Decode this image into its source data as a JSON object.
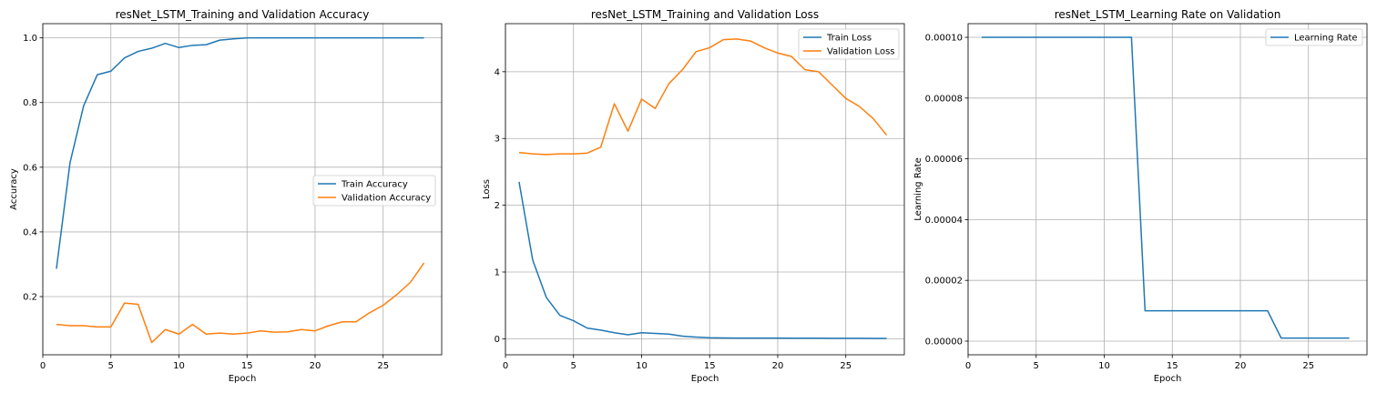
{
  "chart_data": [
    {
      "type": "line",
      "title": "resNet_LSTM_Training and Validation Accuracy",
      "xlabel": "Epoch",
      "ylabel": "Accuracy",
      "xlim": [
        0,
        29.3
      ],
      "ylim": [
        0.02,
        1.044
      ],
      "xticks": [
        0,
        5,
        10,
        15,
        20,
        25
      ],
      "yticks": [
        0.2,
        0.4,
        0.6,
        0.8,
        1.0
      ],
      "ytick_decimals": 1,
      "grid": true,
      "legend": "center-right",
      "x": [
        1,
        2,
        3,
        4,
        5,
        6,
        7,
        8,
        9,
        10,
        11,
        12,
        13,
        14,
        15,
        16,
        17,
        18,
        19,
        20,
        21,
        22,
        23,
        24,
        25,
        26,
        27,
        28
      ],
      "series": [
        {
          "name": "Train Accuracy",
          "color": "#1f77b4",
          "values": [
            0.286,
            0.614,
            0.79,
            0.886,
            0.897,
            0.938,
            0.958,
            0.968,
            0.983,
            0.97,
            0.977,
            0.979,
            0.993,
            0.997,
            1.0,
            1.0,
            1.0,
            1.0,
            1.0,
            1.0,
            1.0,
            1.0,
            1.0,
            1.0,
            1.0,
            1.0,
            1.0,
            1.0
          ]
        },
        {
          "name": "Validation Accuracy",
          "color": "#ff7f0e",
          "values": [
            0.114,
            0.11,
            0.11,
            0.106,
            0.106,
            0.18,
            0.176,
            0.058,
            0.098,
            0.084,
            0.114,
            0.084,
            0.087,
            0.084,
            0.087,
            0.094,
            0.09,
            0.091,
            0.098,
            0.094,
            0.11,
            0.122,
            0.122,
            0.15,
            0.173,
            0.206,
            0.244,
            0.304
          ]
        }
      ]
    },
    {
      "type": "line",
      "title": "resNet_LSTM_Training and Validation Loss",
      "xlabel": "Epoch",
      "ylabel": "Loss",
      "xlim": [
        0,
        29.3
      ],
      "ylim": [
        -0.24,
        4.72
      ],
      "xticks": [
        0,
        5,
        10,
        15,
        20,
        25
      ],
      "yticks": [
        0,
        1,
        2,
        3,
        4
      ],
      "ytick_decimals": 0,
      "grid": true,
      "legend": "top-right",
      "x": [
        1,
        2,
        3,
        4,
        5,
        6,
        7,
        8,
        9,
        10,
        11,
        12,
        13,
        14,
        15,
        16,
        17,
        18,
        19,
        20,
        21,
        22,
        23,
        24,
        25,
        26,
        27,
        28
      ],
      "series": [
        {
          "name": "Train Loss",
          "color": "#1f77b4",
          "values": [
            2.35,
            1.18,
            0.62,
            0.35,
            0.27,
            0.16,
            0.13,
            0.09,
            0.06,
            0.09,
            0.08,
            0.07,
            0.04,
            0.025,
            0.015,
            0.012,
            0.01,
            0.01,
            0.01,
            0.01,
            0.008,
            0.008,
            0.008,
            0.007,
            0.007,
            0.007,
            0.006,
            0.006
          ]
        },
        {
          "name": "Validation Loss",
          "color": "#ff7f0e",
          "values": [
            2.79,
            2.77,
            2.76,
            2.77,
            2.77,
            2.78,
            2.87,
            3.52,
            3.11,
            3.59,
            3.45,
            3.82,
            4.03,
            4.3,
            4.36,
            4.48,
            4.49,
            4.46,
            4.36,
            4.28,
            4.23,
            4.03,
            4.0,
            3.8,
            3.6,
            3.48,
            3.3,
            3.05
          ]
        }
      ]
    },
    {
      "type": "line",
      "title": "resNet_LSTM_Learning Rate on Validation",
      "xlabel": "Epoch",
      "ylabel": "Learning Rate",
      "xlim": [
        0,
        29.3
      ],
      "ylim": [
        -4.5e-06,
        0.0001045
      ],
      "xticks": [
        0,
        5,
        10,
        15,
        20,
        25
      ],
      "yticks": [
        0,
        2e-05,
        4e-05,
        6e-05,
        8e-05,
        0.0001
      ],
      "ytick_decimals": 5,
      "grid": true,
      "legend": "top-right",
      "x": [
        1,
        2,
        3,
        4,
        5,
        6,
        7,
        8,
        9,
        10,
        11,
        12,
        13,
        14,
        15,
        16,
        17,
        18,
        19,
        20,
        21,
        22,
        23,
        24,
        25,
        26,
        27,
        28
      ],
      "series": [
        {
          "name": "Learning Rate",
          "color": "#1f77b4",
          "values": [
            0.0001,
            0.0001,
            0.0001,
            0.0001,
            0.0001,
            0.0001,
            0.0001,
            0.0001,
            0.0001,
            0.0001,
            0.0001,
            0.0001,
            1e-05,
            1e-05,
            1e-05,
            1e-05,
            1e-05,
            1e-05,
            1e-05,
            1e-05,
            1e-05,
            1e-05,
            1e-06,
            1e-06,
            1e-06,
            1e-06,
            1e-06,
            1e-06
          ]
        }
      ]
    }
  ]
}
